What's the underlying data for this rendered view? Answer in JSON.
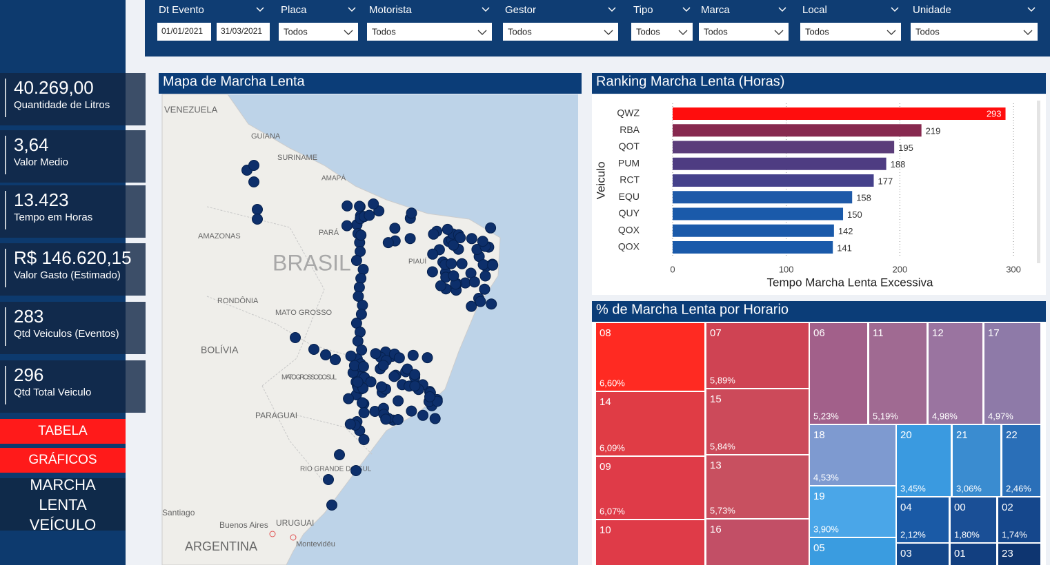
{
  "filters": [
    {
      "label": "Dt Evento",
      "values": [
        "01/01/2021",
        "31/03/2021"
      ]
    },
    {
      "label": "Placa",
      "value": "Todos"
    },
    {
      "label": "Motorista",
      "value": "Todos"
    },
    {
      "label": "Gestor",
      "value": "Todos"
    },
    {
      "label": "Tipo",
      "value": "Todos"
    },
    {
      "label": "Marca",
      "value": "Todos"
    },
    {
      "label": "Local",
      "value": "Todos"
    },
    {
      "label": "Unidade",
      "value": "Todos"
    }
  ],
  "kpis": [
    {
      "value": "40.269,00",
      "label": "Quantidade de Litros"
    },
    {
      "value": "3,64",
      "label": "Valor Medio"
    },
    {
      "value": "13.423",
      "label": "Tempo em Horas"
    },
    {
      "value": "R$ 146.620,15",
      "label": "Valor Gasto (Estimado)"
    },
    {
      "value": "283",
      "label": "Qtd Veiculos (Eventos)"
    },
    {
      "value": "296",
      "label": "Qtd Total Veiculo"
    }
  ],
  "buttons": [
    "TABELA",
    "GRÁFICOS",
    "MARCHA LENTA VEÍCULO"
  ],
  "map": {
    "title": "Mapa de Marcha Lenta",
    "labels": [
      "VENEZUELA",
      "GUIANA",
      "SURINAME",
      "AMAPÁ",
      "AMAZONAS",
      "PARÁ",
      "BRASIL",
      "PIAUÍ",
      "RONDÔNIA",
      "MATO GROSSO",
      "BOLÍVIA",
      "MATO GROSSO DO SUL",
      "PARAGUAI",
      "RIO GRANDE DO SUL",
      "Santiago",
      "Buenos Aires",
      "URUGUAI",
      "Montevidéu",
      "ARGENTINA"
    ]
  },
  "ranking": {
    "type": "bar",
    "title": "Ranking Marcha Lenta (Horas)",
    "y_label": "Veiculo",
    "x_label": "Tempo Marcha Lenta Excessiva",
    "categories": [
      "QWZ",
      "RBA",
      "QOT",
      "PUM",
      "RCT",
      "EQU",
      "QUY",
      "QOX",
      "QOX"
    ],
    "values": [
      293,
      219,
      195,
      188,
      177,
      158,
      150,
      142,
      141
    ],
    "colors": [
      "#ff0d0d",
      "#87294f",
      "#5b3d7a",
      "#4e3c82",
      "#45418b",
      "#1f5aa8",
      "#1a5aaa",
      "#1a5aaa",
      "#1a5aaa"
    ],
    "xlim": [
      0,
      320
    ],
    "xticks": [
      0,
      100,
      200,
      300
    ],
    "grid": true
  },
  "treemap": {
    "type": "treemap",
    "title": "% de Marcha Lenta por Horario",
    "items": [
      {
        "label": "08",
        "value": 6.6,
        "value_label": "6,60%",
        "color": "#ff2a22"
      },
      {
        "label": "07",
        "value": 5.89,
        "value_label": "5,89%",
        "color": "#cf4353"
      },
      {
        "label": "14",
        "value": 6.09,
        "value_label": "6,09%",
        "color": "#e03c45"
      },
      {
        "label": "15",
        "value": 5.84,
        "value_label": "5,84%",
        "color": "#cc4a5a"
      },
      {
        "label": "09",
        "value": 6.07,
        "value_label": "6,07%",
        "color": "#df3b48"
      },
      {
        "label": "13",
        "value": 5.73,
        "value_label": "5,73%",
        "color": "#c85060"
      },
      {
        "label": "10",
        "color": "#df3b48"
      },
      {
        "label": "16",
        "color": "#c24f66"
      },
      {
        "label": "06",
        "value": 5.23,
        "value_label": "5,23%",
        "color": "#a2608a"
      },
      {
        "label": "11",
        "value": 5.19,
        "value_label": "5,19%",
        "color": "#a06a92"
      },
      {
        "label": "12",
        "value": 4.98,
        "value_label": "4,98%",
        "color": "#9a74a0"
      },
      {
        "label": "17",
        "value": 4.97,
        "value_label": "4,97%",
        "color": "#8e7aa8"
      },
      {
        "label": "18",
        "value": 4.53,
        "value_label": "4,53%",
        "color": "#7e9ad0"
      },
      {
        "label": "19",
        "value": 3.9,
        "value_label": "3,90%",
        "color": "#4aa6e8"
      },
      {
        "label": "05",
        "color": "#3a9ce0"
      },
      {
        "label": "20",
        "value": 3.45,
        "value_label": "3,45%",
        "color": "#3a9ae0"
      },
      {
        "label": "21",
        "value": 3.06,
        "value_label": "3,06%",
        "color": "#3a8cd0"
      },
      {
        "label": "22",
        "value": 2.46,
        "value_label": "2,46%",
        "color": "#2a6fb8"
      },
      {
        "label": "04",
        "value": 2.12,
        "value_label": "2,12%",
        "color": "#1a5aa6"
      },
      {
        "label": "00",
        "value": 1.8,
        "value_label": "1,80%",
        "color": "#1a4f96"
      },
      {
        "label": "02",
        "value": 1.74,
        "value_label": "1,74%",
        "color": "#15478c"
      },
      {
        "label": "03",
        "color": "#14478a"
      },
      {
        "label": "01",
        "color": "#123f80"
      },
      {
        "label": "23",
        "color": "#0e3570"
      }
    ]
  }
}
